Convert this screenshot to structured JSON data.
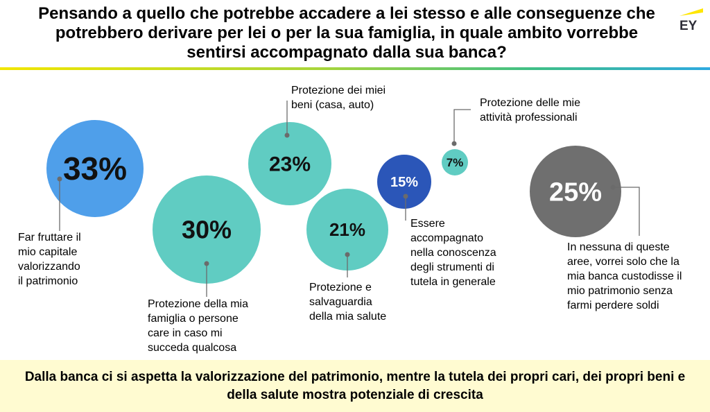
{
  "title": "Pensando a quello che potrebbe accadere a lei stesso e alle conseguenze che potrebbero derivare per lei o per la sua famiglia, in quale ambito vorrebbe sentirsi accompagnato dalla sua banca?",
  "logo_text": "EY",
  "colors": {
    "light_blue": "#4f9fea",
    "teal": "#60ccc2",
    "dark_blue": "#2b56b8",
    "grey": "#6f6f6f",
    "logo_yellow": "#ffe600",
    "footer_bg": "#fffbd1"
  },
  "chart_data": {
    "type": "bubble",
    "unit": "%",
    "items": [
      {
        "value": 33,
        "label": "33%",
        "description": "Far fruttare il mio capitale valorizzando il patrimonio",
        "color": "#4f9fea"
      },
      {
        "value": 30,
        "label": "30%",
        "description": "Protezione della mia famiglia o persone care in caso mi succeda qualcosa",
        "color": "#60ccc2"
      },
      {
        "value": 23,
        "label": "23%",
        "description": "Protezione dei miei beni (casa, auto)",
        "color": "#60ccc2"
      },
      {
        "value": 21,
        "label": "21%",
        "description": "Protezione e salvaguardia della mia salute",
        "color": "#60ccc2"
      },
      {
        "value": 15,
        "label": "15%",
        "description": "Essere accompagnato nella conoscenza degli strumenti di tutela in generale",
        "color": "#2b56b8"
      },
      {
        "value": 7,
        "label": "7%",
        "description": "Protezione delle mie attività professionali",
        "color": "#60ccc2"
      },
      {
        "value": 25,
        "label": "25%",
        "description": "In nessuna di queste aree, vorrei solo che la mia banca custodisse il mio patrimonio senza farmi perdere soldi",
        "color": "#6f6f6f"
      }
    ]
  },
  "footer": "Dalla banca ci si aspetta la valorizzazione del patrimonio, mentre la tutela dei propri cari, dei propri beni e della salute mostra potenziale di crescita"
}
